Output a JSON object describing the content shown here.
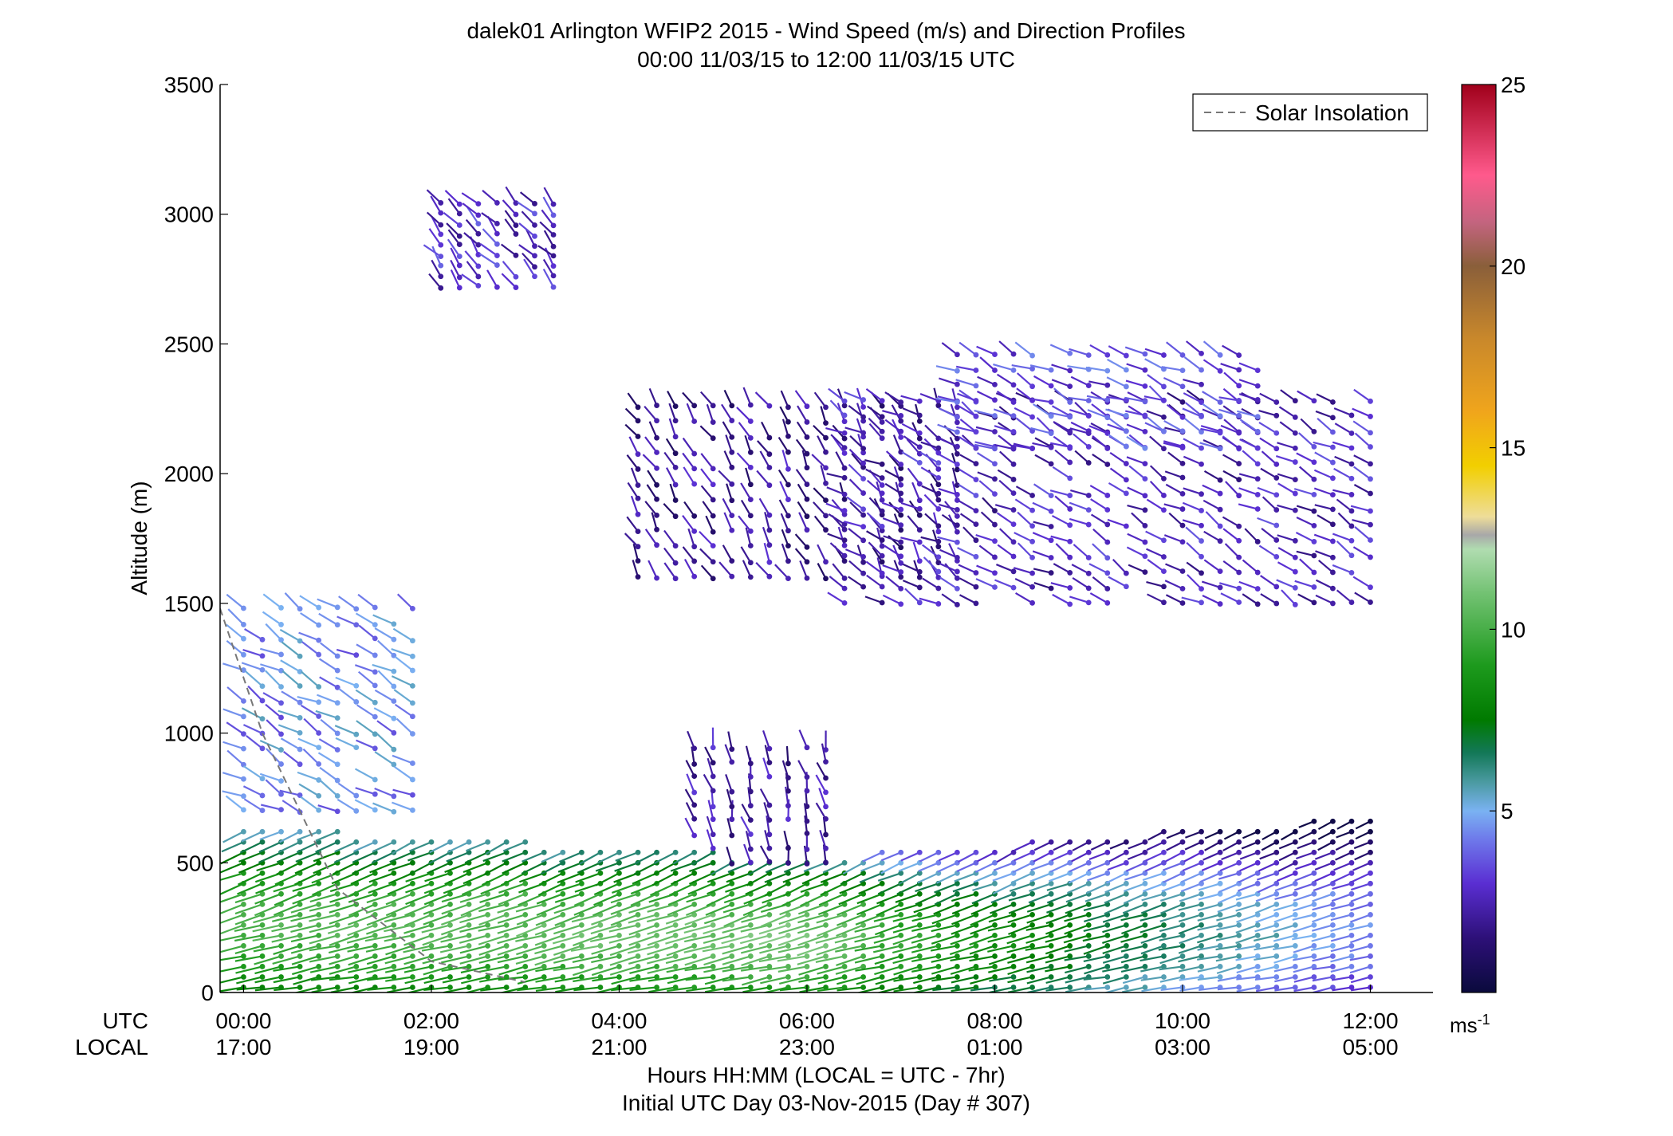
{
  "chart_data": {
    "type": "scatter",
    "title": "dalek01 Arlington WFIP2 2015 - Wind Speed (m/s) and Direction Profiles",
    "subtitle": "00:00 11/03/15 to 12:00 11/03/15  UTC",
    "ylabel": "Altitude (m)",
    "ylim": [
      0,
      3500
    ],
    "y_ticks": [
      "0",
      "500",
      "1000",
      "1500",
      "2000",
      "2500",
      "3000",
      "3500"
    ],
    "xlim": [
      "-00:15",
      "12:40"
    ],
    "x_tick_hours": [
      0,
      2,
      4,
      6,
      8,
      10,
      12
    ],
    "x_ticks_utc": [
      "00:00",
      "02:00",
      "04:00",
      "06:00",
      "08:00",
      "10:00",
      "12:00"
    ],
    "x_ticks_local": [
      "17:00",
      "19:00",
      "21:00",
      "23:00",
      "01:00",
      "03:00",
      "05:00"
    ],
    "x_row_label_utc": "UTC",
    "x_row_label_local": "LOCAL",
    "xlabel": "Hours HH:MM  (LOCAL = UTC - 7hr)",
    "xlabel2": "Initial UTC Day 03-Nov-2015 (Day # 307)",
    "legend": {
      "label": "Solar Insolation",
      "placement": "top-right",
      "line_color": "#777777"
    },
    "solar_insolation_line": {
      "x": [
        -0.25,
        0.2,
        1.0,
        2.0,
        3.0
      ],
      "y": [
        1480,
        1000,
        400,
        120,
        40
      ]
    },
    "colorbar": {
      "unit": "ms-1",
      "ticks": [
        "5",
        "10",
        "15",
        "20",
        "25"
      ],
      "range": [
        0,
        25
      ],
      "stops": [
        {
          "v": 0,
          "c": "#0a0a3c"
        },
        {
          "v": 1.5,
          "c": "#2d1078"
        },
        {
          "v": 3,
          "c": "#5a2ed2"
        },
        {
          "v": 4.2,
          "c": "#6e78ea"
        },
        {
          "v": 5,
          "c": "#7ab2f2"
        },
        {
          "v": 5.8,
          "c": "#4a9aa0"
        },
        {
          "v": 6.6,
          "c": "#137858"
        },
        {
          "v": 7.5,
          "c": "#007a00"
        },
        {
          "v": 9,
          "c": "#1d9a1d"
        },
        {
          "v": 11,
          "c": "#73c273"
        },
        {
          "v": 12.2,
          "c": "#b0dcb0"
        },
        {
          "v": 12.6,
          "c": "#a8a8a8"
        },
        {
          "v": 13.1,
          "c": "#eedd99"
        },
        {
          "v": 14.5,
          "c": "#f2cf00"
        },
        {
          "v": 16,
          "c": "#f0a51c"
        },
        {
          "v": 18,
          "c": "#c9882b"
        },
        {
          "v": 20,
          "c": "#8a5f3a"
        },
        {
          "v": 21.2,
          "c": "#c3647f"
        },
        {
          "v": 22.5,
          "c": "#ff5a8c"
        },
        {
          "v": 25,
          "c": "#a0001a"
        }
      ]
    },
    "grid": false,
    "symbol": "wind barb: dot at measurement, staff toward wind direction, colored by speed (ms-1)",
    "time_step_hours": 0.2,
    "series": [
      {
        "block": "low-level jet",
        "t_start": 0.0,
        "t_end": 12.0,
        "y_start": 20,
        "y_step": 40,
        "levels_near_start": 16,
        "levels_mid": 13,
        "levels_near_end": 17,
        "speed_at_ground_start": 8,
        "speed_at_ground_mid": 9,
        "speed_at_ground_end": 3.0,
        "dir_near_ground": 260,
        "dir_aloft": 245
      },
      {
        "block": "early-evening column",
        "t_start": 0.0,
        "t_end": 1.8,
        "y_start": 700,
        "y_step": 60,
        "levels": 14,
        "speed": 4.5,
        "dir": 300
      },
      {
        "block": "evening aloft band",
        "t_start": 4.2,
        "t_end": 7.6,
        "y_start": 1600,
        "y_step": 60,
        "levels": 12,
        "speed": 2.0,
        "dir": 330
      },
      {
        "block": "night-time aloft band",
        "t_start": 6.4,
        "t_end": 12.0,
        "y_start": 1500,
        "y_step": 60,
        "levels": 14,
        "speed": 2.6,
        "dir": 300
      },
      {
        "block": "upper layer",
        "t_start": 7.6,
        "t_end": 10.8,
        "y_start": 2100,
        "y_step": 60,
        "levels": 7,
        "speed": 3.5,
        "dir": 295
      },
      {
        "block": "mid-level scattered",
        "t_start": 4.8,
        "t_end": 6.2,
        "y_start": 500,
        "y_step": 55,
        "levels": 9,
        "speed": 2.2,
        "dir": 345
      },
      {
        "block": "high isolated returns",
        "t_start": 2.1,
        "t_end": 3.2,
        "y_start": 2720,
        "y_step": 40,
        "levels": 9,
        "speed": 2.8,
        "dir": 320
      }
    ]
  }
}
